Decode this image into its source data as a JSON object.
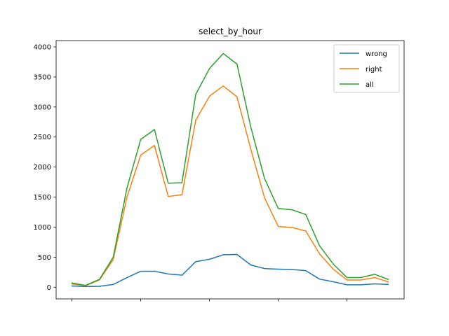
{
  "chart_data": {
    "type": "line",
    "title": "select_by_hour",
    "xlabel": "",
    "ylabel": "",
    "x": [
      0,
      1,
      2,
      3,
      4,
      5,
      6,
      7,
      8,
      9,
      10,
      11,
      12,
      13,
      14,
      15,
      16,
      17,
      18,
      19,
      20,
      21,
      22,
      23
    ],
    "xlim": [
      -1.15,
      24.15
    ],
    "x_ticks": [
      0,
      5,
      10,
      15,
      20
    ],
    "ylim": [
      -195,
      4105
    ],
    "y_ticks": [
      0,
      500,
      1000,
      1500,
      2000,
      2500,
      3000,
      3500,
      4000
    ],
    "y_tick_labels": [
      "0",
      "500",
      "1000",
      "1500",
      "2000",
      "2500",
      "3000",
      "3500",
      "4000"
    ],
    "grid": false,
    "legend_position": "top-right",
    "series": [
      {
        "name": "wrong",
        "color": "#1f77b4",
        "values": [
          20,
          10,
          15,
          45,
          160,
          265,
          265,
          220,
          200,
          425,
          465,
          540,
          545,
          370,
          310,
          300,
          295,
          275,
          135,
          90,
          40,
          40,
          55,
          45
        ]
      },
      {
        "name": "right",
        "color": "#ff7f0e",
        "values": [
          55,
          25,
          120,
          460,
          1500,
          2200,
          2360,
          1510,
          1540,
          2780,
          3180,
          3350,
          3170,
          2300,
          1490,
          1010,
          995,
          935,
          555,
          300,
          120,
          120,
          160,
          90
        ]
      },
      {
        "name": "all",
        "color": "#2ca02c",
        "values": [
          70,
          30,
          130,
          500,
          1650,
          2460,
          2625,
          1730,
          1740,
          3210,
          3640,
          3890,
          3715,
          2670,
          1810,
          1310,
          1290,
          1210,
          690,
          385,
          160,
          160,
          215,
          130
        ]
      }
    ]
  }
}
